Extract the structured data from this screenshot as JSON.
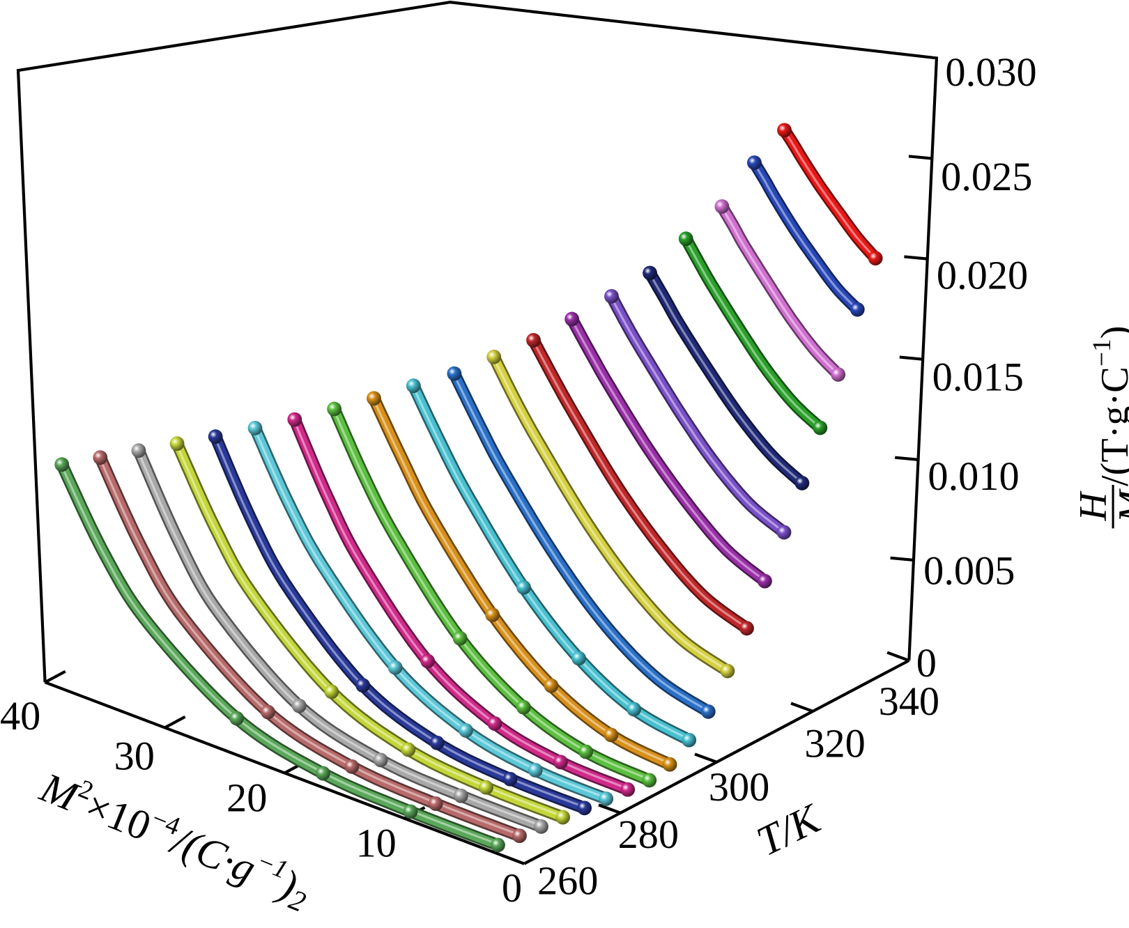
{
  "chart_data": {
    "type": "line",
    "projection": "3d",
    "title": "",
    "x_axis": {
      "label_parts": {
        "m": "M",
        "sup1": "2",
        "mid": "×10",
        "sup2": "−4",
        "unit": "/(C·g",
        "sup3": "−1",
        "close": ")",
        "sub": "2"
      },
      "range": [
        0,
        40
      ],
      "ticks": [
        "0",
        "10",
        "20",
        "30",
        "40"
      ]
    },
    "y_axis": {
      "label": "T/K",
      "range": [
        260,
        340
      ],
      "ticks": [
        "260",
        "280",
        "300",
        "320",
        "340"
      ]
    },
    "z_axis": {
      "label_num": "H",
      "label_den": "M",
      "label_unit": "/(T·g·C",
      "label_sup": "−1",
      "label_close": ")",
      "range": [
        0,
        0.03
      ],
      "ticks": [
        "0",
        "0.005",
        "0.010",
        "0.015",
        "0.020",
        "0.025",
        "0.030"
      ]
    },
    "grid": false,
    "series": [
      {
        "T": 262,
        "color": "#5aa85a",
        "M2": [
          3.0,
          10.3,
          17.6,
          24.8,
          32.1,
          35.8,
          39.4
        ],
        "HM": [
          0,
          1.7e-05,
          0.00027,
          0.00137,
          0.00434,
          0.00695,
          0.0106
        ]
      },
      {
        "T": 266,
        "color": "#b86a6a",
        "M2": [
          2.8,
          9.8,
          16.8,
          23.8,
          30.8,
          34.3,
          37.8
        ],
        "HM": [
          0,
          1.7e-05,
          0.00028,
          0.0014,
          0.00442,
          0.00709,
          0.0108
        ]
      },
      {
        "T": 270,
        "color": "#a8a8a8",
        "M2": [
          2.6,
          9.3,
          16.0,
          22.8,
          29.5,
          32.8,
          36.2
        ],
        "HM": [
          0,
          1.8e-05,
          0.00028,
          0.00143,
          0.00451,
          0.00722,
          0.011
        ]
      },
      {
        "T": 274,
        "color": "#c4d63a",
        "M2": [
          2.4,
          8.8,
          15.3,
          21.7,
          28.2,
          31.4,
          34.6
        ],
        "HM": [
          0,
          4e-05,
          0.00045,
          0.00187,
          0.00513,
          0.00774,
          0.0112
        ]
      },
      {
        "T": 278,
        "color": "#2a3a9a",
        "M2": [
          2.2,
          8.4,
          14.5,
          20.7,
          26.8,
          29.9,
          33.0
        ],
        "HM": [
          0,
          4e-05,
          0.00046,
          0.00191,
          0.00522,
          0.00788,
          0.0114
        ]
      },
      {
        "T": 282,
        "color": "#5cc8d8",
        "M2": [
          2.0,
          7.9,
          13.7,
          19.6,
          25.4,
          28.4,
          31.3
        ],
        "HM": [
          0,
          9e-05,
          0.00075,
          0.00253,
          0.00599,
          0.00853,
          0.0117
        ]
      },
      {
        "T": 286,
        "color": "#d02a8a",
        "M2": [
          1.8,
          7.4,
          12.9,
          18.5,
          24.0,
          26.8,
          29.6
        ],
        "HM": [
          0,
          0.0001,
          0.00077,
          0.00259,
          0.00614,
          0.00875,
          0.012
        ]
      },
      {
        "T": 290,
        "color": "#5cbf40",
        "M2": [
          1.6,
          6.9,
          12.1,
          17.4,
          22.6,
          25.3,
          27.9
        ],
        "HM": [
          0,
          0.00022,
          0.00125,
          0.00346,
          0.0071,
          0.00953,
          0.0124
        ]
      },
      {
        "T": 294,
        "color": "#d8901a",
        "M2": [
          1.5,
          6.4,
          11.4,
          16.3,
          21.3,
          23.7,
          26.2
        ],
        "HM": [
          0.0003,
          0.00066,
          0.00197,
          0.00436,
          0.00795,
          0.01021,
          0.0128
        ]
      },
      {
        "T": 298,
        "color": "#48c0d0",
        "M2": [
          1.5,
          6.1,
          10.7,
          15.3,
          19.9,
          22.2,
          24.5
        ],
        "HM": [
          0.001,
          0.00149,
          0.00297,
          0.00543,
          0.00887,
          0.01096,
          0.0133
        ]
      },
      {
        "T": 302,
        "color": "#2a70c8",
        "M2": [
          1.5,
          5.7,
          10.0,
          14.2,
          18.5,
          20.6,
          22.7
        ],
        "HM": [
          0.0019,
          0.00256,
          0.00419,
          0.00665,
          0.00986,
          0.01174,
          0.0138
        ]
      },
      {
        "T": 306,
        "color": "#d4d040",
        "M2": [
          1.5,
          5.4,
          9.3,
          13.2,
          17.1,
          19.1,
          21.0
        ],
        "HM": [
          0.0034,
          0.00412,
          0.00574,
          0.00806,
          0.011,
          0.01268,
          0.0145
        ]
      },
      {
        "T": 310,
        "color": "#c0282a",
        "M2": [
          1.5,
          5.1,
          8.6,
          12.2,
          15.7,
          17.5,
          19.3
        ],
        "HM": [
          0.005,
          0.00578,
          0.00735,
          0.0095,
          0.01214,
          0.01362,
          0.0152
        ]
      },
      {
        "T": 314,
        "color": "#9a30a8",
        "M2": [
          1.6,
          4.8,
          8.0,
          11.3,
          14.5,
          16.1,
          17.7
        ],
        "HM": [
          0.0068,
          0.00763,
          0.00915,
          0.01112,
          0.01345,
          0.01474,
          0.0161
        ]
      },
      {
        "T": 318,
        "color": "#7a50c8",
        "M2": [
          1.6,
          4.5,
          7.4,
          10.2,
          13.1,
          14.6,
          16.0
        ],
        "HM": [
          0.0087,
          0.00945,
          0.01083,
          0.0126,
          0.01471,
          0.01587,
          0.0171
        ]
      },
      {
        "T": 322,
        "color": "#202a78",
        "M2": [
          1.7,
          4.2,
          6.8,
          9.3,
          11.9,
          13.1,
          14.4
        ],
        "HM": [
          0.0106,
          0.01139,
          0.01268,
          0.01427,
          0.01609,
          0.01707,
          0.0181
        ]
      },
      {
        "T": 326,
        "color": "#2aa02a",
        "M2": [
          1.8,
          4.0,
          6.3,
          8.5,
          10.8,
          11.9,
          13.0
        ],
        "HM": [
          0.0128,
          0.01351,
          0.01468,
          0.01613,
          0.01778,
          0.01867,
          0.0196
        ]
      },
      {
        "T": 330,
        "color": "#d070d0",
        "M2": [
          1.9,
          3.8,
          5.8,
          7.7,
          9.7,
          10.6,
          11.6
        ],
        "HM": [
          0.0149,
          0.01565,
          0.01675,
          0.01804,
          0.01947,
          0.02022,
          0.021
        ]
      },
      {
        "T": 334,
        "color": "#2848b8",
        "M2": [
          1.9,
          3.6,
          5.3,
          7.1,
          8.8,
          9.6,
          10.5
        ],
        "HM": [
          0.0176,
          0.01825,
          0.01921,
          0.02033,
          0.02157,
          0.02222,
          0.0229
        ]
      },
      {
        "T": 338,
        "color": "#e81818",
        "M2": [
          2.0,
          3.5,
          5.0,
          6.6,
          8.1,
          8.8,
          9.6
        ],
        "HM": [
          0.0196,
          0.02027,
          0.02113,
          0.02209,
          0.02312,
          0.02365,
          0.0242
        ]
      }
    ]
  }
}
